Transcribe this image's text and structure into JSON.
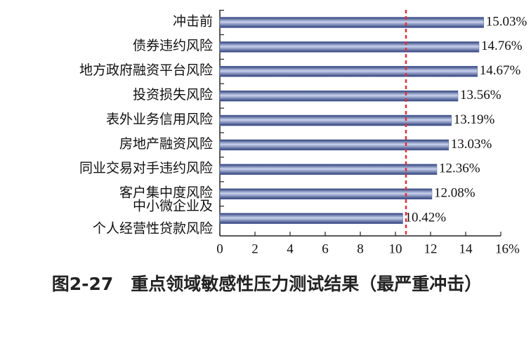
{
  "chart_data": {
    "type": "barh",
    "title": "图2-27　重点领域敏感性压力测试结果（最严重冲击）",
    "categories": [
      "冲击前",
      "债券违约风险",
      "地方政府融资平台风险",
      "投资损失风险",
      "表外业务信用风险",
      "房地产融资风险",
      "同业交易对手违约风险",
      "客户集中度风险",
      [
        "中小微企业及",
        "个人经营性贷款风险"
      ]
    ],
    "values": [
      15.03,
      14.76,
      14.67,
      13.56,
      13.19,
      13.03,
      12.36,
      12.08,
      10.42
    ],
    "value_labels": [
      "15.03%",
      "14.76%",
      "14.67%",
      "13.56%",
      "13.19%",
      "13.03%",
      "12.36%",
      "12.08%",
      "10.42%"
    ],
    "color": "#5a6fa8",
    "xlim": [
      0,
      16
    ],
    "xticks": [
      0,
      2,
      4,
      6,
      8,
      10,
      12,
      14,
      {
        "value": 16,
        "label": "16%"
      }
    ],
    "reference_line": {
      "value": 10.6,
      "color": "#e0303a"
    }
  }
}
